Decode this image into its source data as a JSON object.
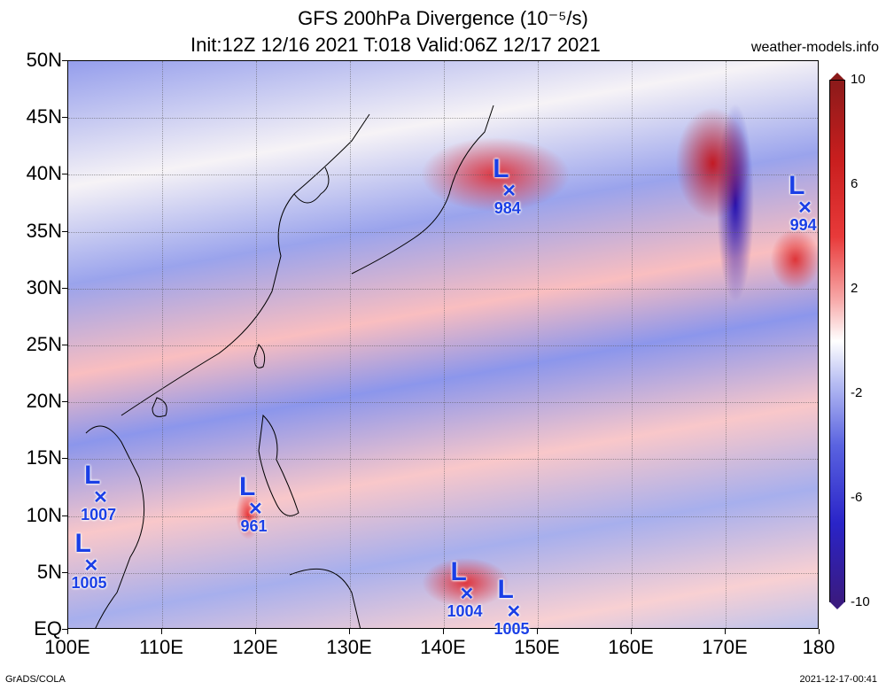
{
  "title": {
    "line1": "GFS 200hPa Divergence (10⁻⁵/s)",
    "line2": "Init:12Z 12/16 2021 T:018 Valid:06Z 12/17 2021"
  },
  "site": "weather-models.info",
  "y_axis": {
    "labels": [
      "50N",
      "45N",
      "40N",
      "35N",
      "30N",
      "25N",
      "20N",
      "15N",
      "10N",
      "5N",
      "EQ"
    ],
    "range_lat": [
      0,
      50
    ]
  },
  "x_axis": {
    "labels": [
      "100E",
      "110E",
      "120E",
      "130E",
      "140E",
      "150E",
      "160E",
      "170E",
      "180"
    ],
    "range_lon": [
      100,
      180
    ]
  },
  "colorbar": {
    "labels": [
      "10",
      "6",
      "2",
      "-2",
      "-6",
      "-10"
    ],
    "range": [
      -10,
      10
    ],
    "colors": {
      "max": "#8b1a1a",
      "high": "#c81e1e",
      "mid_pos": "#f7a8a8",
      "zero": "#ffffff",
      "mid_neg": "#b7bdf3",
      "low": "#2a24c8",
      "min": "#3a1a80"
    }
  },
  "lows": [
    {
      "letter": "L",
      "pressure": "984",
      "lon": 147,
      "lat": 38.5
    },
    {
      "letter": "L",
      "pressure": "994",
      "lon": 178.5,
      "lat": 37
    },
    {
      "letter": "L",
      "pressure": "1007",
      "lon": 103.5,
      "lat": 11.5
    },
    {
      "letter": "L",
      "pressure": "961",
      "lon": 120,
      "lat": 10.5
    },
    {
      "letter": "L",
      "pressure": "1005",
      "lon": 102.5,
      "lat": 5.5
    },
    {
      "letter": "L",
      "pressure": "1004",
      "lon": 142.5,
      "lat": 3
    },
    {
      "letter": "L",
      "pressure": "1005",
      "lon": 147.5,
      "lat": 1.5
    }
  ],
  "footer": {
    "left": "GrADS/COLA",
    "right": "2021-12-17-00:41"
  },
  "marker_color": "#1a3fe6"
}
